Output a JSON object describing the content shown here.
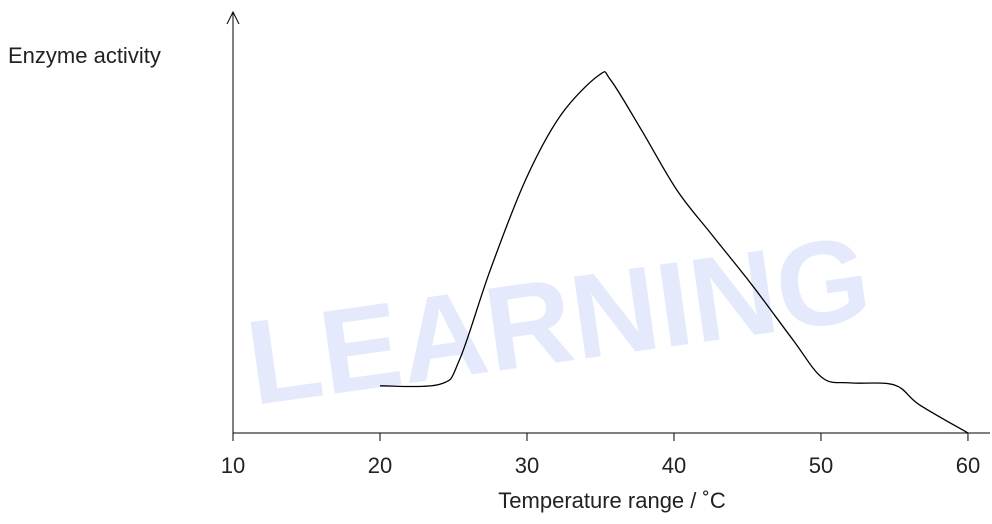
{
  "chart_data": {
    "type": "line",
    "watermark": "LEARNING",
    "y_label": "Enzyme activity",
    "x_label": "Temperature range / ˚C",
    "xlim": [
      10,
      61.5
    ],
    "ylim": [
      0,
      100
    ],
    "xticks": [
      10,
      20,
      30,
      40,
      50,
      60
    ],
    "series": [
      {
        "name": null,
        "color": "#000000",
        "x": [
          20,
          24.1,
          25.4,
          27.5,
          29.9,
          32.3,
          34.9,
          35.7,
          37.8,
          40.2,
          42.6,
          45.3,
          48.1,
          50.1,
          52,
          55,
          56.7,
          60
        ],
        "values": [
          11.2,
          11.6,
          17.3,
          38.7,
          60.1,
          75.5,
          85,
          83.8,
          71.9,
          57.7,
          47,
          35.2,
          22.1,
          13.1,
          11.9,
          11.4,
          6.7,
          0
        ]
      }
    ]
  }
}
